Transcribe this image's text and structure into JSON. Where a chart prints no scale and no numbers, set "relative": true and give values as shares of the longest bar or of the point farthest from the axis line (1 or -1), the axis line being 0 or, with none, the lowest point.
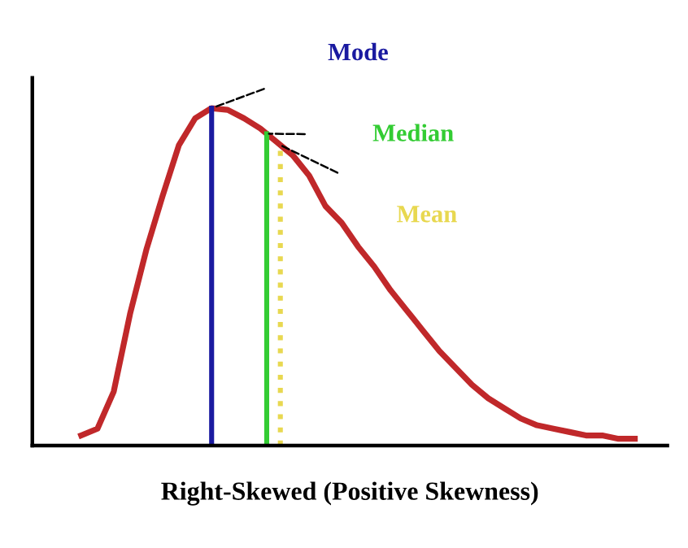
{
  "chart_data": {
    "type": "line",
    "relative": true,
    "xlabel": "Right-Skewed (Positive Skewness)",
    "tick_labels": false,
    "legend": false,
    "categories": [
      null,
      null,
      null,
      null,
      null,
      null,
      null,
      null,
      null,
      null,
      null,
      null,
      null,
      null,
      null,
      null,
      null,
      null,
      null,
      null,
      null,
      null,
      null,
      null,
      null,
      null,
      null,
      null,
      null,
      null,
      null,
      null,
      null,
      null,
      null
    ],
    "series": [
      {
        "color": "#c0282a",
        "values": [
          0.03,
          0.05,
          0.16,
          0.39,
          0.58,
          0.74,
          0.89,
          0.97,
          1.0,
          0.995,
          0.97,
          0.94,
          0.9,
          0.86,
          0.8,
          0.71,
          0.66,
          0.59,
          0.53,
          0.46,
          0.4,
          0.34,
          0.28,
          0.23,
          0.18,
          0.14,
          0.11,
          0.08,
          0.06,
          0.05,
          0.04,
          0.03,
          0.03,
          0.02,
          0.02
        ]
      }
    ],
    "annotations": [
      "Mode",
      "Median",
      "Mean"
    ]
  }
}
